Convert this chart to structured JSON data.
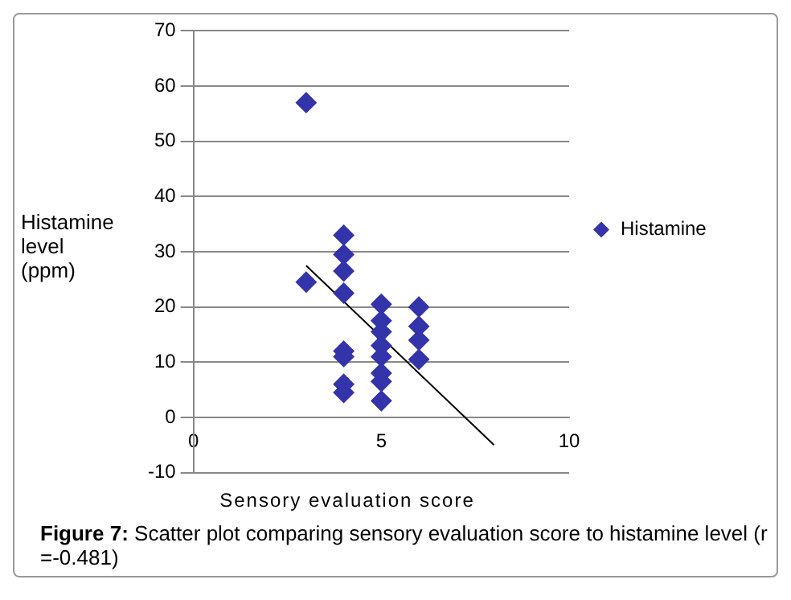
{
  "chart_data": {
    "type": "scatter",
    "xlabel": "Sensory evaluation score",
    "ylabel": "Histamine level (ppm)",
    "annotations": [
      "Figure 7: Scatter plot comparing sensory evaluation score to histamine level (r =-0.481)"
    ],
    "series": [
      {
        "name": "Histamine",
        "color": "#3333aa",
        "marker": "diamond",
        "x": [
          3,
          3,
          4,
          4,
          4,
          4,
          4,
          4,
          4,
          4,
          5,
          5,
          5,
          5,
          5,
          5,
          5,
          5,
          6,
          6,
          6,
          6
        ],
        "values": [
          57,
          24.5,
          33,
          29.5,
          26.5,
          22.5,
          12,
          11,
          6,
          4.5,
          20.5,
          17.5,
          15.5,
          13,
          11,
          8,
          6.5,
          3,
          20,
          16.5,
          14,
          10.5
        ]
      },
      {
        "type": "line",
        "color": "#000000",
        "x": [
          3,
          8
        ],
        "values": [
          27.5,
          -5
        ]
      }
    ],
    "xlim": [
      0,
      10
    ],
    "xticks": [
      0,
      5,
      10
    ],
    "ylim": [
      -10,
      70
    ],
    "yticks": [
      -10,
      0,
      10,
      20,
      30,
      40,
      50,
      60,
      70
    ],
    "grid": "y",
    "legend": "right"
  }
}
